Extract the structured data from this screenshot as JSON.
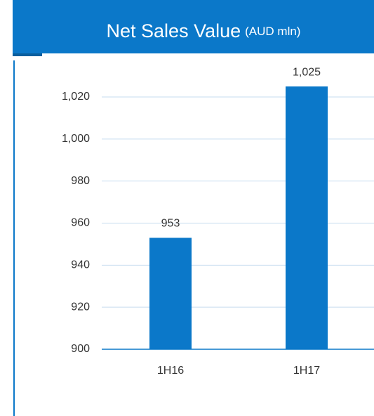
{
  "chart_data": {
    "type": "bar",
    "title": "Net Sales Value",
    "title_unit": "(AUD mln)",
    "categories": [
      "1H16",
      "1H17"
    ],
    "values": [
      953,
      1025
    ],
    "value_labels": [
      "953",
      "1,025"
    ],
    "color": "#0b78c9",
    "ylim": [
      900,
      1020
    ],
    "yticks": [
      900,
      920,
      940,
      960,
      980,
      {
        "value": 1000,
        "label": "1,000"
      },
      {
        "value": 1020,
        "label": "1,020"
      }
    ],
    "grid": true
  }
}
